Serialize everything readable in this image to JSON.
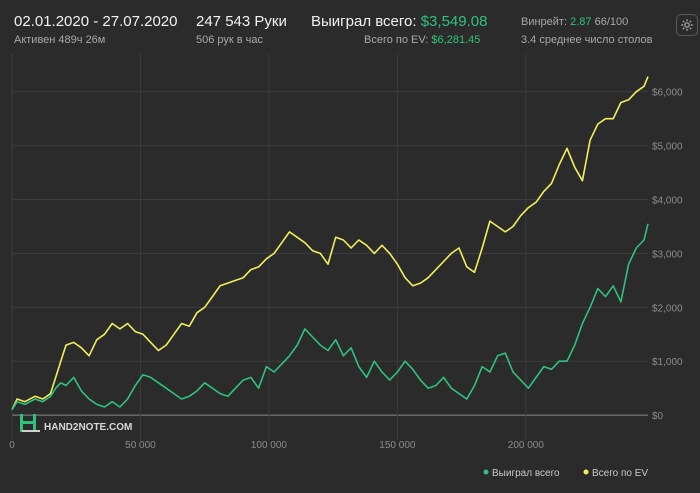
{
  "header": {
    "date_range": "02.01.2020 - 27.07.2020",
    "active_time": "Активен 489ч 26м",
    "hands": "247 543 Руки",
    "hands_per_hour": "506 рук в час",
    "won_label": "Выиграл всего:",
    "won_value": "$3,549.08",
    "ev_label": "Всего по EV:",
    "ev_value": "$6,281.45",
    "winrate_label": "Винрейт:",
    "winrate_value": "2.87",
    "winrate_suffix": "66/100",
    "avg_tables": "3.4 среднее число столов"
  },
  "watermark": "HAND2NOTE.COM",
  "colors": {
    "background": "#2b2b2b",
    "won": "#2ec27e",
    "ev": "#f0f05a",
    "grid": "#3c3c3c",
    "text_muted": "#a8a8a8"
  },
  "chart_data": {
    "type": "line",
    "xlim": [
      0,
      247543
    ],
    "ylim": [
      -350,
      6700
    ],
    "x_ticks": [
      0,
      50000,
      100000,
      150000,
      200000
    ],
    "x_tick_labels": [
      "0",
      "50 000",
      "100 000",
      "150 000",
      "200 000"
    ],
    "y_ticks": [
      0,
      1000,
      2000,
      3000,
      4000,
      5000,
      6000
    ],
    "y_tick_labels": [
      "$0",
      "$1,000",
      "$2,000",
      "$3,000",
      "$4,000",
      "$5,000",
      "$6,000"
    ],
    "grid": true,
    "legend_position": "bottom-right",
    "series": [
      {
        "name": "Выиграл всего",
        "color": "#2ec27e",
        "x": [
          0,
          2000,
          5000,
          9000,
          12000,
          15000,
          17000,
          19000,
          21000,
          24000,
          27000,
          30000,
          33000,
          36000,
          39000,
          42000,
          45000,
          48000,
          51000,
          54000,
          57000,
          60000,
          63000,
          66000,
          69000,
          72000,
          75000,
          78000,
          81000,
          84000,
          87000,
          90000,
          93000,
          96000,
          99000,
          102000,
          105000,
          108000,
          111000,
          114000,
          117000,
          120000,
          123000,
          126000,
          129000,
          132000,
          135000,
          138000,
          141000,
          144000,
          147000,
          150000,
          153000,
          156000,
          159000,
          162000,
          165000,
          168000,
          171000,
          174000,
          177000,
          180000,
          183000,
          186000,
          189000,
          192000,
          195000,
          198000,
          201000,
          204000,
          207000,
          210000,
          213000,
          216000,
          219000,
          222000,
          225000,
          228000,
          231000,
          234000,
          237000,
          240000,
          243000,
          246000,
          247543
        ],
        "y": [
          100,
          250,
          200,
          300,
          250,
          350,
          500,
          600,
          550,
          700,
          450,
          300,
          200,
          150,
          250,
          150,
          300,
          550,
          750,
          700,
          600,
          500,
          400,
          300,
          350,
          450,
          600,
          500,
          400,
          350,
          500,
          650,
          700,
          500,
          900,
          800,
          950,
          1100,
          1300,
          1600,
          1450,
          1300,
          1200,
          1400,
          1100,
          1250,
          900,
          700,
          1000,
          800,
          650,
          800,
          1000,
          850,
          650,
          500,
          550,
          700,
          500,
          400,
          300,
          550,
          900,
          800,
          1100,
          1150,
          800,
          650,
          500,
          700,
          900,
          850,
          1000,
          1000,
          1300,
          1700,
          2000,
          2350,
          2200,
          2400,
          2100,
          2800,
          3100,
          3250,
          3550
        ]
      },
      {
        "name": "Всего по EV",
        "color": "#f0f05a",
        "x": [
          0,
          2000,
          5000,
          9000,
          12000,
          15000,
          17000,
          19000,
          21000,
          24000,
          27000,
          30000,
          33000,
          36000,
          39000,
          42000,
          45000,
          48000,
          51000,
          54000,
          57000,
          60000,
          63000,
          66000,
          69000,
          72000,
          75000,
          78000,
          81000,
          84000,
          87000,
          90000,
          93000,
          96000,
          99000,
          102000,
          105000,
          108000,
          111000,
          114000,
          117000,
          120000,
          123000,
          126000,
          129000,
          132000,
          135000,
          138000,
          141000,
          144000,
          147000,
          150000,
          153000,
          156000,
          159000,
          162000,
          165000,
          168000,
          171000,
          174000,
          177000,
          180000,
          183000,
          186000,
          189000,
          192000,
          195000,
          198000,
          201000,
          204000,
          207000,
          210000,
          213000,
          216000,
          219000,
          222000,
          225000,
          228000,
          231000,
          234000,
          237000,
          240000,
          243000,
          246000,
          247543
        ],
        "y": [
          100,
          300,
          250,
          350,
          300,
          400,
          700,
          1000,
          1300,
          1350,
          1250,
          1100,
          1400,
          1500,
          1700,
          1600,
          1700,
          1550,
          1500,
          1350,
          1200,
          1300,
          1500,
          1700,
          1650,
          1900,
          2000,
          2200,
          2400,
          2450,
          2500,
          2550,
          2700,
          2750,
          2900,
          3000,
          3200,
          3400,
          3300,
          3200,
          3050,
          3000,
          2800,
          3300,
          3250,
          3100,
          3250,
          3150,
          3000,
          3150,
          3000,
          2800,
          2550,
          2400,
          2450,
          2550,
          2700,
          2850,
          3000,
          3100,
          2750,
          2650,
          3100,
          3600,
          3500,
          3400,
          3500,
          3700,
          3850,
          3950,
          4150,
          4300,
          4650,
          4950,
          4600,
          4350,
          5100,
          5400,
          5500,
          5500,
          5800,
          5850,
          6000,
          6100,
          6280
        ]
      }
    ]
  }
}
